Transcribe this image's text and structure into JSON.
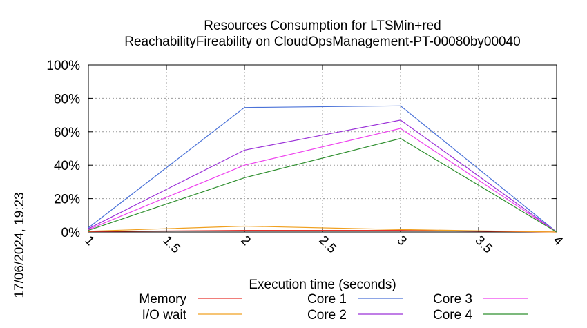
{
  "chart_data": {
    "type": "line",
    "title_line1": "Resources Consumption for LTSMin+red",
    "title_line2": "ReachabilityFireability on CloudOpsManagement-PT-00080by00040",
    "xlabel": "Execution time (seconds)",
    "side_label": "17/06/2024, 19:23",
    "xlim": [
      1,
      4
    ],
    "ylim": [
      0,
      100
    ],
    "x_ticks": [
      {
        "value": 1,
        "label": "1"
      },
      {
        "value": 1.5,
        "label": "1.5"
      },
      {
        "value": 2,
        "label": "2"
      },
      {
        "value": 2.5,
        "label": "2.5"
      },
      {
        "value": 3,
        "label": "3"
      },
      {
        "value": 3.5,
        "label": "3.5"
      },
      {
        "value": 4,
        "label": "4"
      }
    ],
    "y_ticks": [
      {
        "value": 0,
        "label": "0%"
      },
      {
        "value": 20,
        "label": "20%"
      },
      {
        "value": 40,
        "label": "40%"
      },
      {
        "value": 60,
        "label": "60%"
      },
      {
        "value": 80,
        "label": "80%"
      },
      {
        "value": 100,
        "label": "100%"
      }
    ],
    "grid": true,
    "legend_placement": "bottom",
    "series": [
      {
        "name": "Memory",
        "color": "#e8302a",
        "x": [
          1,
          2,
          3,
          4
        ],
        "y": [
          0.3,
          1.0,
          1.0,
          0.0
        ]
      },
      {
        "name": "I/O wait",
        "color": "#f0a020",
        "x": [
          1,
          2,
          3,
          4
        ],
        "y": [
          0.5,
          3.5,
          1.5,
          0.0
        ]
      },
      {
        "name": "Core 1",
        "color": "#4a72d8",
        "x": [
          1,
          2,
          3,
          4
        ],
        "y": [
          2.5,
          74.5,
          75.5,
          0.0
        ]
      },
      {
        "name": "Core 2",
        "color": "#9a30d8",
        "x": [
          1,
          2,
          3,
          4
        ],
        "y": [
          2.0,
          49.0,
          67.0,
          0.0
        ]
      },
      {
        "name": "Core 3",
        "color": "#ee40ee",
        "x": [
          1,
          2,
          3,
          4
        ],
        "y": [
          1.5,
          40.0,
          62.0,
          0.0
        ]
      },
      {
        "name": "Core 4",
        "color": "#2f8f2f",
        "x": [
          1,
          2,
          3,
          4
        ],
        "y": [
          1.0,
          32.5,
          56.0,
          0.0
        ]
      }
    ]
  }
}
